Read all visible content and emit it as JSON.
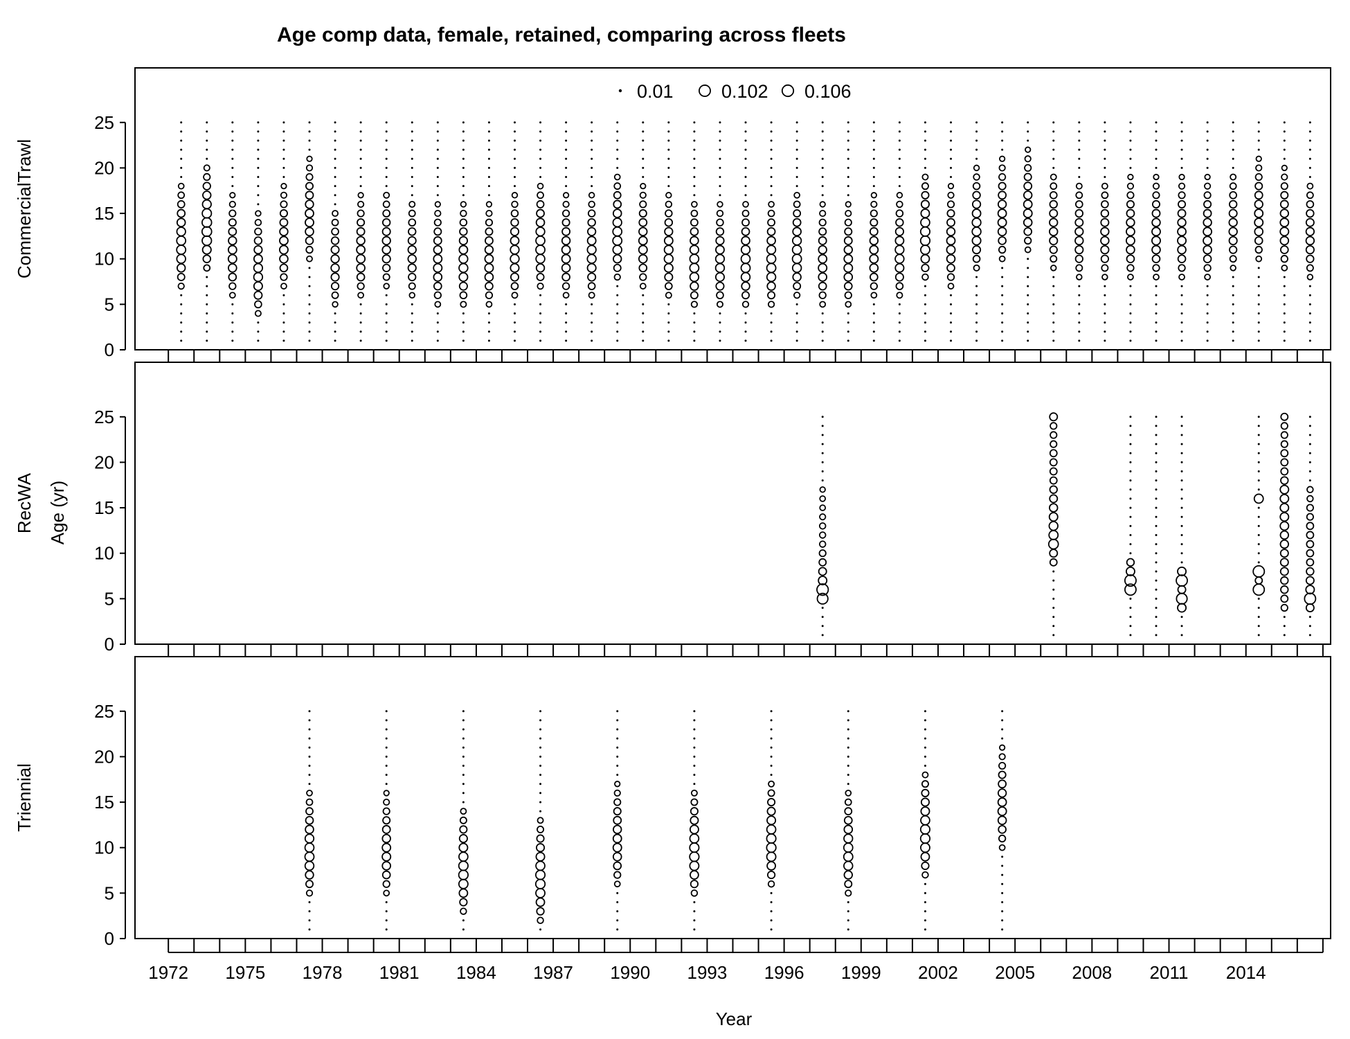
{
  "chart_data": {
    "type": "bubble",
    "title": "Age comp data, female, retained, comparing across fleets",
    "xlabel": "Year",
    "ylabel": "Age (yr)",
    "xlim": [
      1970.7,
      2017.3
    ],
    "ylim": [
      0,
      31
    ],
    "x_tick_labels": [
      "1972",
      "1975",
      "1978",
      "1981",
      "1984",
      "1987",
      "1990",
      "1993",
      "1996",
      "1999",
      "2002",
      "2005",
      "2008",
      "2011",
      "2014"
    ],
    "y_ticks": [
      0,
      5,
      10,
      15,
      20,
      25
    ],
    "legend": {
      "placement": "top-center",
      "entries": [
        {
          "label": "0.01",
          "value": 0.01
        },
        {
          "label": "0.102",
          "value": 0.102
        },
        {
          "label": "0.106",
          "value": 0.106
        }
      ]
    },
    "panels": [
      {
        "name": "CommercialTrawl",
        "years": [
          1972.5,
          1973.5,
          1974.5,
          1975.5,
          1976.5,
          1977.5,
          1978.5,
          1979.5,
          1980.5,
          1981.5,
          1982.5,
          1983.5,
          1984.5,
          1985.5,
          1986.5,
          1987.5,
          1988.5,
          1989.5,
          1990.5,
          1991.5,
          1992.5,
          1993.5,
          1994.5,
          1995.5,
          1996.5,
          1997.5,
          1998.5,
          1999.5,
          2000.5,
          2001.5,
          2002.5,
          2003.5,
          2004.5,
          2005.5,
          2006.5,
          2007.5,
          2008.5,
          2009.5,
          2010.5,
          2011.5,
          2012.5,
          2013.5,
          2014.5,
          2015.5,
          2016.5
        ],
        "peaks": [
          11,
          13,
          10,
          8,
          11,
          14,
          9,
          10,
          11,
          10,
          9,
          9,
          9,
          10,
          11,
          10,
          10,
          12,
          11,
          10,
          9,
          9,
          9,
          9,
          10,
          9,
          9,
          10,
          10,
          12,
          11,
          13,
          14,
          15,
          13,
          12,
          12,
          12,
          12,
          12,
          12,
          13,
          14,
          13,
          12
        ],
        "peak_values": [
          0.06,
          0.07,
          0.05,
          0.055,
          0.05,
          0.05,
          0.045,
          0.05,
          0.045,
          0.045,
          0.05,
          0.055,
          0.05,
          0.055,
          0.06,
          0.05,
          0.055,
          0.06,
          0.05,
          0.055,
          0.06,
          0.055,
          0.06,
          0.06,
          0.06,
          0.05,
          0.05,
          0.05,
          0.055,
          0.065,
          0.05,
          0.055,
          0.05,
          0.05,
          0.045,
          0.045,
          0.045,
          0.05,
          0.05,
          0.05,
          0.05,
          0.045,
          0.05,
          0.05,
          0.045
        ],
        "min_age": 1,
        "max_age": 25
      },
      {
        "name": "RecWA",
        "series": [
          {
            "year": 1997.5,
            "ages": [
              1,
              25
            ],
            "points": [
              [
                5,
                0.09
              ],
              [
                6,
                0.106
              ],
              [
                7,
                0.05
              ],
              [
                8,
                0.04
              ],
              [
                9,
                0.03
              ],
              [
                10,
                0.025
              ],
              [
                11,
                0.02
              ],
              [
                12,
                0.02
              ],
              [
                13,
                0.02
              ],
              [
                14,
                0.018
              ],
              [
                15,
                0.015
              ],
              [
                16,
                0.015
              ],
              [
                17,
                0.013
              ]
            ]
          },
          {
            "year": 2006.5,
            "ages": [
              1,
              25
            ],
            "points": [
              [
                9,
                0.03
              ],
              [
                10,
                0.04
              ],
              [
                11,
                0.07
              ],
              [
                12,
                0.06
              ],
              [
                13,
                0.055
              ],
              [
                14,
                0.05
              ],
              [
                15,
                0.045
              ],
              [
                16,
                0.04
              ],
              [
                17,
                0.035
              ],
              [
                18,
                0.03
              ],
              [
                19,
                0.03
              ],
              [
                20,
                0.03
              ],
              [
                21,
                0.03
              ],
              [
                22,
                0.025
              ],
              [
                23,
                0.025
              ],
              [
                24,
                0.025
              ],
              [
                25,
                0.04
              ]
            ]
          },
          {
            "year": 2009.5,
            "ages": [
              1,
              25
            ],
            "points": [
              [
                6,
                0.1
              ],
              [
                7,
                0.102
              ],
              [
                8,
                0.05
              ],
              [
                9,
                0.035
              ]
            ]
          },
          {
            "year": 2010.5,
            "ages": [
              1,
              25
            ],
            "points": []
          },
          {
            "year": 2011.5,
            "ages": [
              1,
              25
            ],
            "points": [
              [
                4,
                0.05
              ],
              [
                5,
                0.09
              ],
              [
                6,
                0.04
              ],
              [
                7,
                0.1
              ],
              [
                8,
                0.05
              ]
            ]
          },
          {
            "year": 2014.5,
            "ages": [
              1,
              25
            ],
            "points": [
              [
                6,
                0.1
              ],
              [
                7,
                0.03
              ],
              [
                8,
                0.102
              ],
              [
                16,
                0.06
              ]
            ]
          },
          {
            "year": 2015.5,
            "ages": [
              1,
              25
            ],
            "points": [
              [
                4,
                0.025
              ],
              [
                5,
                0.03
              ],
              [
                6,
                0.035
              ],
              [
                7,
                0.035
              ],
              [
                8,
                0.04
              ],
              [
                9,
                0.04
              ],
              [
                10,
                0.04
              ],
              [
                11,
                0.045
              ],
              [
                12,
                0.045
              ],
              [
                13,
                0.05
              ],
              [
                14,
                0.05
              ],
              [
                15,
                0.05
              ],
              [
                16,
                0.05
              ],
              [
                17,
                0.05
              ],
              [
                18,
                0.035
              ],
              [
                19,
                0.03
              ],
              [
                20,
                0.03
              ],
              [
                21,
                0.03
              ],
              [
                22,
                0.025
              ],
              [
                23,
                0.025
              ],
              [
                24,
                0.025
              ],
              [
                25,
                0.03
              ]
            ]
          },
          {
            "year": 2016.5,
            "ages": [
              1,
              25
            ],
            "points": [
              [
                4,
                0.04
              ],
              [
                5,
                0.1
              ],
              [
                6,
                0.05
              ],
              [
                7,
                0.04
              ],
              [
                8,
                0.035
              ],
              [
                9,
                0.03
              ],
              [
                10,
                0.03
              ],
              [
                11,
                0.03
              ],
              [
                12,
                0.03
              ],
              [
                13,
                0.03
              ],
              [
                14,
                0.025
              ],
              [
                15,
                0.025
              ],
              [
                16,
                0.02
              ],
              [
                17,
                0.02
              ]
            ]
          }
        ]
      },
      {
        "name": "Triennial",
        "years": [
          1977.5,
          1980.5,
          1983.5,
          1986.5,
          1989.5,
          1992.5,
          1995.5,
          1998.5,
          2001.5,
          2004.5
        ],
        "peaks": [
          9,
          9,
          7,
          6,
          10,
          9,
          10,
          9,
          11,
          14
        ],
        "peak_values": [
          0.06,
          0.05,
          0.065,
          0.065,
          0.05,
          0.065,
          0.065,
          0.06,
          0.065,
          0.05
        ],
        "min_age": 1,
        "max_age": 25
      }
    ]
  }
}
